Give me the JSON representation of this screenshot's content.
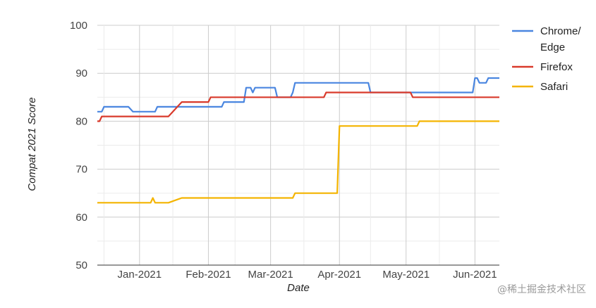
{
  "chart_data": {
    "type": "line",
    "title": "",
    "xlabel": "Date",
    "ylabel": "Compat 2021 Score",
    "ylim": [
      50,
      100
    ],
    "yticks": [
      "50",
      "60",
      "70",
      "80",
      "90",
      "100"
    ],
    "xlim": [
      "2020-12-13",
      "2021-06-12"
    ],
    "xticks": [
      {
        "label": "Jan-2021",
        "date": "2021-01-01"
      },
      {
        "label": "Feb-2021",
        "date": "2021-02-01"
      },
      {
        "label": "Mar-2021",
        "date": "2021-03-01"
      },
      {
        "label": "Apr-2021",
        "date": "2021-04-01"
      },
      {
        "label": "May-2021",
        "date": "2021-05-01"
      },
      {
        "label": "Jun-2021",
        "date": "2021-06-01"
      }
    ],
    "grid": true,
    "legend_position": "right",
    "series": [
      {
        "name": "Chrome/ Edge",
        "color": "#4a86e0",
        "points": [
          [
            "2020-12-13",
            82
          ],
          [
            "2020-12-15",
            82
          ],
          [
            "2020-12-16",
            83
          ],
          [
            "2020-12-27",
            83
          ],
          [
            "2020-12-29",
            82
          ],
          [
            "2021-01-08",
            82
          ],
          [
            "2021-01-09",
            83
          ],
          [
            "2021-02-07",
            83
          ],
          [
            "2021-02-08",
            84
          ],
          [
            "2021-02-17",
            84
          ],
          [
            "2021-02-18",
            87
          ],
          [
            "2021-02-20",
            87
          ],
          [
            "2021-02-21",
            86
          ],
          [
            "2021-02-22",
            87
          ],
          [
            "2021-03-03",
            87
          ],
          [
            "2021-03-04",
            85
          ],
          [
            "2021-03-10",
            85
          ],
          [
            "2021-03-11",
            86
          ],
          [
            "2021-03-12",
            88
          ],
          [
            "2021-04-14",
            88
          ],
          [
            "2021-04-15",
            86
          ],
          [
            "2021-05-31",
            86
          ],
          [
            "2021-06-01",
            89
          ],
          [
            "2021-06-02",
            89
          ],
          [
            "2021-06-03",
            88
          ],
          [
            "2021-06-06",
            88
          ],
          [
            "2021-06-07",
            89
          ],
          [
            "2021-06-12",
            89
          ]
        ]
      },
      {
        "name": "Firefox",
        "color": "#d93a2b",
        "points": [
          [
            "2020-12-13",
            80
          ],
          [
            "2020-12-14",
            80
          ],
          [
            "2020-12-15",
            81
          ],
          [
            "2021-01-14",
            81
          ],
          [
            "2021-01-20",
            84
          ],
          [
            "2021-02-01",
            84
          ],
          [
            "2021-02-02",
            85
          ],
          [
            "2021-03-25",
            85
          ],
          [
            "2021-03-26",
            86
          ],
          [
            "2021-05-03",
            86
          ],
          [
            "2021-05-04",
            85
          ],
          [
            "2021-06-12",
            85
          ]
        ]
      },
      {
        "name": "Safari",
        "color": "#f4b400",
        "points": [
          [
            "2020-12-13",
            63
          ],
          [
            "2021-01-06",
            63
          ],
          [
            "2021-01-07",
            64
          ],
          [
            "2021-01-08",
            63
          ],
          [
            "2021-01-14",
            63
          ],
          [
            "2021-01-20",
            64
          ],
          [
            "2021-03-11",
            64
          ],
          [
            "2021-03-12",
            65
          ],
          [
            "2021-03-31",
            65
          ],
          [
            "2021-04-01",
            79
          ],
          [
            "2021-05-06",
            79
          ],
          [
            "2021-05-07",
            80
          ],
          [
            "2021-06-12",
            80
          ]
        ]
      }
    ]
  },
  "watermark": {
    "text": "@稀土掘金技术社区"
  }
}
